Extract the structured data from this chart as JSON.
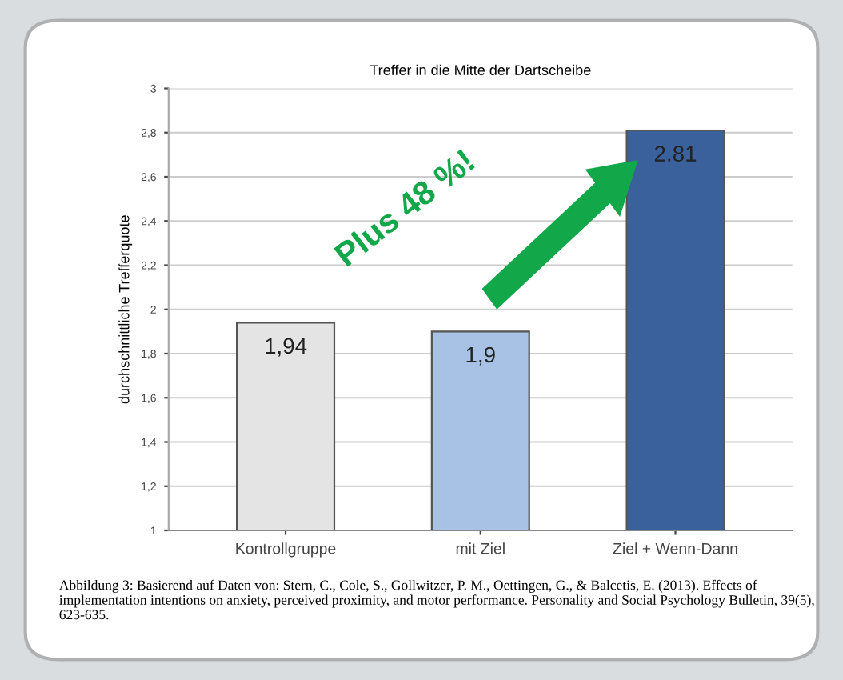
{
  "chart_data": {
    "type": "bar",
    "title": "Treffer in die Mitte der Dartscheibe",
    "ylabel": "durchschnittliche Trefferquote",
    "categories": [
      "Kontrollgruppe",
      "mit Ziel",
      "Ziel + Wenn-Dann"
    ],
    "values": [
      1.94,
      1.9,
      2.81
    ],
    "colors": [
      "#e4e4e4",
      "#a8c2e6",
      "#3a619c"
    ],
    "value_labels": [
      "1,94",
      "1,9",
      "2.81"
    ],
    "ylim": [
      1,
      3
    ],
    "yticks": [
      1,
      {
        "value": 1.2,
        "label": "1,2"
      },
      {
        "value": 1.4,
        "label": "1,4"
      },
      {
        "value": 1.6,
        "label": "1,6"
      },
      {
        "value": 1.8,
        "label": "1,8"
      },
      2,
      {
        "value": 2.2,
        "label": "2,2"
      },
      {
        "value": 2.4,
        "label": "2,4"
      },
      {
        "value": 2.6,
        "label": "2,6"
      },
      {
        "value": 2.8,
        "label": "2,8"
      },
      3
    ],
    "grid": "y",
    "annotations": [
      "Plus 48 %!",
      "Abbildung 3: Basierend auf Daten von: Stern, C., Cole, S., Gollwitzer, P. M., Oettingen, G., & Balcetis, E. (2013). Effects of implementation intentions on anxiety, perceived proximity, and motor performance. Personality and Social Psychology Bulletin, 39(5), 623-635."
    ]
  }
}
